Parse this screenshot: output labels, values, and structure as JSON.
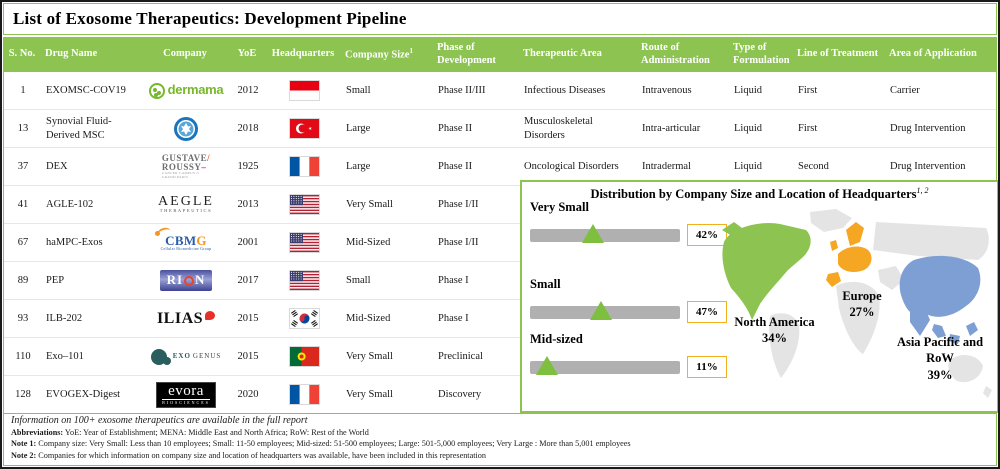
{
  "title": "List of Exosome Therapeutics: Development Pipeline",
  "table": {
    "columns": [
      {
        "label": "S. No.",
        "sup": ""
      },
      {
        "label": "Drug Name",
        "sup": ""
      },
      {
        "label": "Company",
        "sup": ""
      },
      {
        "label": "YoE",
        "sup": ""
      },
      {
        "label": "Headquarters",
        "sup": ""
      },
      {
        "label": "Company Size",
        "sup": "1"
      },
      {
        "label": "Phase of Development",
        "sup": ""
      },
      {
        "label": "Therapeutic Area",
        "sup": ""
      },
      {
        "label": "Route of Administration",
        "sup": ""
      },
      {
        "label": "Type of Formulation",
        "sup": ""
      },
      {
        "label": "Line of Treatment",
        "sup": ""
      },
      {
        "label": "Area of Application",
        "sup": ""
      }
    ],
    "rows": [
      {
        "s_no": "1",
        "drug_name": "EXOMSC-COV19",
        "company": {
          "type": "dermama",
          "lines": [
            "dermama"
          ]
        },
        "yoe": "2012",
        "hq_flag": "indonesia",
        "company_size": "Small",
        "phase": "Phase II/III",
        "therapeutic_area": "Infectious Diseases",
        "route": "Intravenous",
        "formulation": "Liquid",
        "line_of_treatment": "First",
        "application": "Carrier"
      },
      {
        "s_no": "13",
        "drug_name": "Synovial Fluid-Derived MSC",
        "company": {
          "type": "badge",
          "lines": []
        },
        "yoe": "2018",
        "hq_flag": "turkey",
        "company_size": "Large",
        "phase": "Phase II",
        "therapeutic_area": "Musculoskeletal Disorders",
        "route": "Intra-articular",
        "formulation": "Liquid",
        "line_of_treatment": "First",
        "application": "Drug Intervention"
      },
      {
        "s_no": "37",
        "drug_name": "DEX",
        "company": {
          "type": "gustave",
          "lines": [
            "GUSTAVE",
            "ROUSSY",
            "CANCER CAMPUS",
            "GRAND PARIS"
          ]
        },
        "yoe": "1925",
        "hq_flag": "france",
        "company_size": "Large",
        "phase": "Phase II",
        "therapeutic_area": "Oncological Disorders",
        "route": "Intradermal",
        "formulation": "Liquid",
        "line_of_treatment": "Second",
        "application": "Drug Intervention"
      },
      {
        "s_no": "41",
        "drug_name": "AGLE-102",
        "company": {
          "type": "aegle",
          "lines": [
            "AEGLE",
            "THERAPEUTICS"
          ]
        },
        "yoe": "2013",
        "hq_flag": "usa",
        "company_size": "Very Small",
        "phase": "Phase I/II",
        "therapeutic_area": "",
        "route": "",
        "formulation": "",
        "line_of_treatment": "",
        "application": ""
      },
      {
        "s_no": "67",
        "drug_name": "haMPC-Exos",
        "company": {
          "type": "cbmg",
          "lines": [
            "CBMG",
            "Cellular Biomedicine Group"
          ]
        },
        "yoe": "2001",
        "hq_flag": "usa",
        "company_size": "Mid-Sized",
        "phase": "Phase I/II",
        "therapeutic_area": "",
        "route": "",
        "formulation": "",
        "line_of_treatment": "",
        "application": ""
      },
      {
        "s_no": "89",
        "drug_name": "PEP",
        "company": {
          "type": "rion",
          "lines": [
            "RION"
          ]
        },
        "yoe": "2017",
        "hq_flag": "usa",
        "company_size": "Small",
        "phase": "Phase I",
        "therapeutic_area": "",
        "route": "",
        "formulation": "",
        "line_of_treatment": "",
        "application": ""
      },
      {
        "s_no": "93",
        "drug_name": "ILB-202",
        "company": {
          "type": "ilias",
          "lines": [
            "ILIAS"
          ]
        },
        "yoe": "2015",
        "hq_flag": "south-korea",
        "company_size": "Mid-Sized",
        "phase": "Phase I",
        "therapeutic_area": "",
        "route": "",
        "formulation": "",
        "line_of_treatment": "",
        "application": ""
      },
      {
        "s_no": "110",
        "drug_name": "Exo–101",
        "company": {
          "type": "exogenus",
          "lines": [
            "EXO",
            "GENUS"
          ]
        },
        "yoe": "2015",
        "hq_flag": "portugal",
        "company_size": "Very Small",
        "phase": "Preclinical",
        "therapeutic_area": "",
        "route": "",
        "formulation": "",
        "line_of_treatment": "",
        "application": ""
      },
      {
        "s_no": "128",
        "drug_name": "EVOGEX-Digest",
        "company": {
          "type": "evora",
          "lines": [
            "evora",
            "BIOSCIENCES"
          ]
        },
        "yoe": "2020",
        "hq_flag": "france",
        "company_size": "Very Small",
        "phase": "Discovery",
        "therapeutic_area": "",
        "route": "",
        "formulation": "",
        "line_of_treatment": "",
        "application": ""
      }
    ]
  },
  "chart_data": {
    "type": "bar",
    "title": "Distribution by Company Size and Location of Headquarters",
    "title_sup": "1, 2",
    "categories": [
      "Very Small",
      "Small",
      "Mid-sized"
    ],
    "values": [
      42,
      47,
      11
    ],
    "unit": "%",
    "xlim": [
      0,
      100
    ],
    "legend_position": "none",
    "grid": false,
    "regions": [
      {
        "name": "North America",
        "value": "34%"
      },
      {
        "name": "Europe",
        "value": "27%"
      },
      {
        "name": "Asia Pacific and RoW",
        "value": "39%"
      }
    ]
  },
  "footer": {
    "info": "Information on 100+ exosome therapeutics are available in the full report",
    "notes": [
      {
        "prefix": "Abbreviations:",
        "text": " YoE: Year of Establishment; MENA: Middle East and North Africa; RoW: Rest of the World"
      },
      {
        "prefix": "Note 1:",
        "text": " Company size: Very Small: Less than 10 employees; Small: 11-50 employees; Mid-sized: 51-500 employees; Large: 501-5,000 employees; Very Large : More than 5,001 employees"
      },
      {
        "prefix": "Note 2:",
        "text": " Companies for which information on company size and location of headquarters was available, have been included in this representation"
      }
    ]
  },
  "colors": {
    "header_green": "#8dc451",
    "triangle_green": "#7fbf3f",
    "bar_gray": "#b0b0b0",
    "value_box_border": "#f2b01e",
    "map_north_america": "#8dc451",
    "map_europe": "#f5a623",
    "map_asia": "#7d9fd3",
    "map_other": "#e4e4e4"
  }
}
